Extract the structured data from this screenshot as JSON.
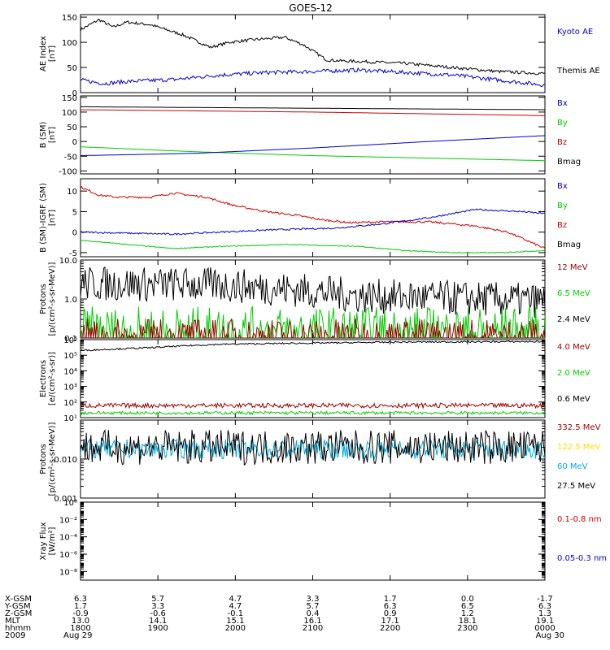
{
  "title": "GOES-12",
  "colors": {
    "black": "#000000",
    "blue": "#0000cc",
    "green": "#00cc00",
    "red": "#cc0000",
    "darkred": "#990000",
    "yellow": "#ffdd00",
    "cyan": "#00aadd"
  },
  "chart_data": [
    {
      "id": "ae",
      "type": "line",
      "ylabel": [
        "AE Index",
        "[nT]"
      ],
      "yscale": "linear",
      "ylim": [
        0,
        155
      ],
      "yticks": [
        0,
        50,
        100,
        150
      ],
      "yticklabels": [
        "0",
        "50",
        "100",
        "150"
      ],
      "legend": [
        {
          "label": "Kyoto AE",
          "color": "blue"
        },
        {
          "label": "Themis AE",
          "color": "black"
        }
      ],
      "series": [
        {
          "name": "Themis AE",
          "color": "black",
          "noise": 3,
          "x": [
            0,
            0.04,
            0.07,
            0.1,
            0.15,
            0.22,
            0.28,
            0.32,
            0.37,
            0.44,
            0.48,
            0.53,
            0.56,
            0.6,
            0.7,
            0.8,
            0.9,
            1.0
          ],
          "y": [
            125,
            145,
            130,
            140,
            135,
            115,
            90,
            100,
            105,
            110,
            95,
            65,
            63,
            62,
            58,
            50,
            42,
            38
          ]
        },
        {
          "name": "Kyoto AE",
          "color": "blue",
          "noise": 4,
          "x": [
            0,
            0.05,
            0.1,
            0.2,
            0.3,
            0.4,
            0.5,
            0.6,
            0.7,
            0.8,
            0.9,
            1.0
          ],
          "y": [
            25,
            18,
            22,
            26,
            35,
            40,
            42,
            45,
            40,
            35,
            25,
            15
          ]
        }
      ]
    },
    {
      "id": "bsm",
      "type": "line",
      "ylabel": [
        "B (SM)",
        "[nT]"
      ],
      "yscale": "linear",
      "ylim": [
        -110,
        155
      ],
      "yticks": [
        -100,
        -50,
        0,
        50,
        100,
        150
      ],
      "yticklabels": [
        "-100",
        "-50",
        "0",
        "50",
        "100",
        "150"
      ],
      "legend": [
        {
          "label": "Bx",
          "color": "blue"
        },
        {
          "label": "By",
          "color": "green"
        },
        {
          "label": "Bz",
          "color": "red"
        },
        {
          "label": "Bmag",
          "color": "black"
        }
      ],
      "series": [
        {
          "name": "Bmag",
          "color": "black",
          "noise": 0,
          "x": [
            0,
            1
          ],
          "y": [
            118,
            108
          ]
        },
        {
          "name": "Bz",
          "color": "red",
          "noise": 0,
          "x": [
            0,
            0.5,
            1
          ],
          "y": [
            108,
            100,
            88
          ]
        },
        {
          "name": "By",
          "color": "green",
          "noise": 0,
          "x": [
            0,
            0.25,
            0.5,
            1
          ],
          "y": [
            -18,
            -35,
            -48,
            -65
          ]
        },
        {
          "name": "Bx",
          "color": "blue",
          "noise": 0,
          "x": [
            0,
            0.25,
            0.5,
            0.75,
            1
          ],
          "y": [
            -48,
            -40,
            -22,
            0,
            20
          ]
        }
      ]
    },
    {
      "id": "dbsm",
      "type": "line",
      "ylabel": [
        "B (SM)-IGRF (SM)",
        "[nT]"
      ],
      "yscale": "linear",
      "ylim": [
        -6,
        13
      ],
      "yticks": [
        -5,
        0,
        5,
        10
      ],
      "yticklabels": [
        "-5",
        "0",
        "5",
        "10"
      ],
      "legend": [
        {
          "label": "Bx",
          "color": "blue"
        },
        {
          "label": "By",
          "color": "green"
        },
        {
          "label": "Bz",
          "color": "red"
        },
        {
          "label": "Bmag",
          "color": "black"
        }
      ],
      "series": [
        {
          "name": "Bz",
          "color": "red",
          "noise": 0.25,
          "x": [
            0,
            0.04,
            0.08,
            0.15,
            0.2,
            0.27,
            0.33,
            0.4,
            0.47,
            0.52,
            0.58,
            0.65,
            0.75,
            0.85,
            0.92,
            1.0
          ],
          "y": [
            11,
            9,
            8.5,
            8.5,
            9.5,
            8.5,
            6.5,
            5,
            4,
            3,
            2.3,
            2.5,
            2.5,
            1.5,
            0,
            -4
          ]
        },
        {
          "name": "Bx",
          "color": "blue",
          "noise": 0.2,
          "x": [
            0,
            0.2,
            0.4,
            0.55,
            0.65,
            0.75,
            0.85,
            0.95,
            1.0
          ],
          "y": [
            0,
            -0.5,
            0.5,
            1,
            2,
            3.5,
            5.5,
            5,
            4.5
          ]
        },
        {
          "name": "By",
          "color": "green",
          "noise": 0.1,
          "x": [
            0,
            0.1,
            0.2,
            0.3,
            0.45,
            0.6,
            0.7,
            0.8,
            0.9,
            1.0
          ],
          "y": [
            -2,
            -3,
            -4,
            -3.5,
            -3,
            -3.5,
            -4.5,
            -5,
            -5,
            -4.5
          ]
        }
      ]
    },
    {
      "id": "protons_low",
      "type": "line",
      "ylabel": [
        "Protons",
        "[p/(cm²-s-sr-MeV)]"
      ],
      "yscale": "log",
      "ylim": [
        0.1,
        10
      ],
      "yticks": [
        0.1,
        1,
        10
      ],
      "yticklabels": [
        "0.1",
        "1.0",
        "10.0"
      ],
      "legend": [
        {
          "label": "12 MeV",
          "color": "darkred"
        },
        {
          "label": "6.5 MeV",
          "color": "green"
        },
        {
          "label": "2.4 MeV",
          "color": "black"
        }
      ],
      "series": [
        {
          "name": "2.4 MeV",
          "color": "black",
          "noise": 0.45,
          "x": [
            0,
            0.3,
            0.6,
            1.0
          ],
          "y": [
            2.5,
            2.3,
            1.2,
            0.9
          ]
        },
        {
          "name": "6.5 MeV",
          "color": "green",
          "noise": 0.7,
          "x": [
            0,
            1
          ],
          "y": [
            0.13,
            0.13
          ]
        },
        {
          "name": "12 MeV",
          "color": "darkred",
          "noise": 0.5,
          "x": [
            0,
            1
          ],
          "y": [
            0.1,
            0.1
          ]
        }
      ]
    },
    {
      "id": "electrons",
      "type": "line",
      "ylabel": [
        "Electrons",
        "[e/(cm²-s-sr)]"
      ],
      "yscale": "log",
      "ylim": [
        10,
        1000000
      ],
      "yticks": [
        10,
        100,
        1000,
        10000,
        100000,
        1000000
      ],
      "yticklabels": [
        "10¹",
        "10²",
        "10³",
        "10⁴",
        "10⁵",
        "10⁶"
      ],
      "legend": [
        {
          "label": "4.0 MeV",
          "color": "darkred"
        },
        {
          "label": "2.0 MeV",
          "color": "green"
        },
        {
          "label": "0.6 MeV",
          "color": "black"
        }
      ],
      "series": [
        {
          "name": "0.6 MeV",
          "color": "black",
          "noise": 0.05,
          "x": [
            0,
            0.15,
            0.3,
            0.5,
            0.7,
            1.0
          ],
          "y": [
            200000,
            300000,
            500000,
            600000,
            700000,
            750000
          ]
        },
        {
          "name": "4.0 MeV",
          "color": "darkred",
          "noise": 0.15,
          "x": [
            0,
            1
          ],
          "y": [
            60,
            60
          ]
        },
        {
          "name": "2.0 MeV",
          "color": "green",
          "noise": 0.1,
          "x": [
            0,
            1
          ],
          "y": [
            20,
            20
          ]
        }
      ]
    },
    {
      "id": "protons_high",
      "type": "line",
      "ylabel": [
        "Protons",
        "[p/(cm²-s-sr-MeV)]"
      ],
      "yscale": "log",
      "ylim": [
        0.001,
        0.1
      ],
      "yticks": [
        0.001,
        0.01
      ],
      "yticklabels": [
        "0.001",
        "0.010"
      ],
      "legend": [
        {
          "label": "332.5 MeV",
          "color": "darkred"
        },
        {
          "label": "122.5 MeV",
          "color": "yellow"
        },
        {
          "label": "60 MeV",
          "color": "cyan"
        },
        {
          "label": "27.5 MeV",
          "color": "black"
        }
      ],
      "series": [
        {
          "name": "60 MeV",
          "color": "cyan",
          "noise": 0.25,
          "x": [
            0,
            1
          ],
          "y": [
            0.018,
            0.018
          ]
        },
        {
          "name": "27.5 MeV",
          "color": "black",
          "noise": 0.45,
          "x": [
            0,
            1
          ],
          "y": [
            0.02,
            0.02
          ]
        }
      ]
    },
    {
      "id": "xray",
      "type": "line",
      "ylabel": [
        "Xray Flux",
        "[W/m²]"
      ],
      "yscale": "log",
      "ylim": [
        1e-09,
        1
      ],
      "yticks": [
        1,
        0.01,
        0.0001,
        1e-06,
        1e-08
      ],
      "yticklabels": [
        "10⁰",
        "10⁻²",
        "10⁻⁴",
        "10⁻⁶",
        "10⁻⁸"
      ],
      "legend": [
        {
          "label": "0.1-0.8 nm",
          "color": "red"
        },
        {
          "label": "0.05-0.3 nm",
          "color": "blue"
        }
      ],
      "series": []
    }
  ],
  "ephemeris": {
    "row_labels": [
      "X-GSM",
      "Y-GSM",
      "Z-GSM",
      "MLT",
      "hhmm",
      "2009"
    ],
    "columns": [
      [
        "6.3",
        "1.7",
        "-0.9",
        "13.0",
        "1800",
        "Aug 29"
      ],
      [
        "5.7",
        "3.3",
        "-0.6",
        "14.1",
        "1900",
        ""
      ],
      [
        "4.7",
        "4.7",
        "-0.1",
        "15.1",
        "2000",
        ""
      ],
      [
        "3.3",
        "5.7",
        "0.4",
        "16.1",
        "2100",
        ""
      ],
      [
        "1.7",
        "6.3",
        "0.9",
        "17.1",
        "2200",
        ""
      ],
      [
        "0.0",
        "6.5",
        "1.2",
        "18.1",
        "2300",
        ""
      ],
      [
        "-1.7",
        "6.3",
        "1.3",
        "19.1",
        "0000",
        "Aug 30"
      ]
    ]
  }
}
